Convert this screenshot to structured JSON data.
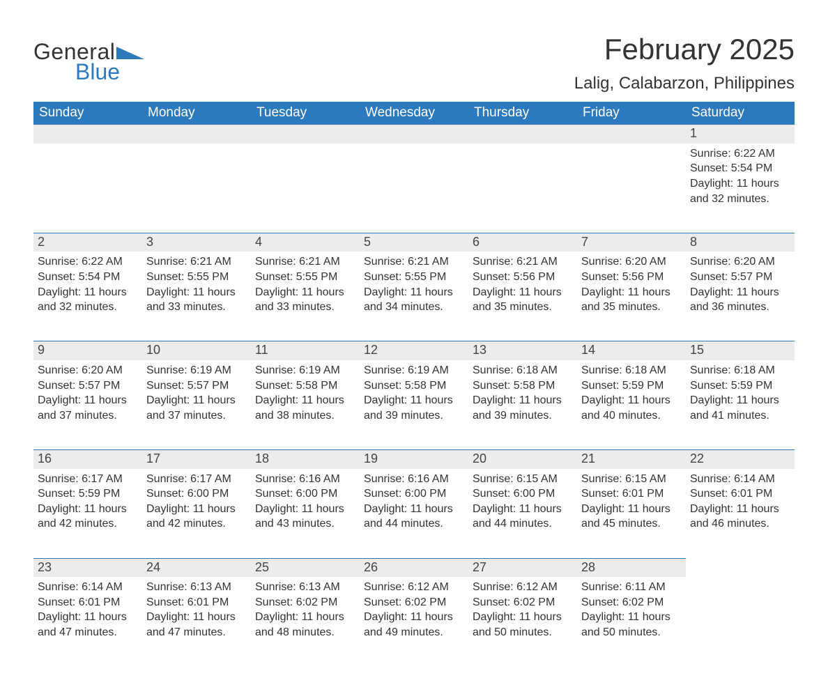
{
  "brand": {
    "text_general": "General",
    "text_blue": "Blue",
    "general_color": "#333333",
    "blue_color": "#2d79bd",
    "triangle_color": "#2d79bd"
  },
  "title": {
    "month_year": "February 2025",
    "location": "Lalig, Calabarzon, Philippines",
    "title_fontsize": 42,
    "location_fontsize": 24,
    "text_color": "#333333"
  },
  "calendar": {
    "header_bg": "#2d79bd",
    "header_text_color": "#ffffff",
    "daynum_bg": "#ececec",
    "daynum_border_top": "#2d79bd",
    "body_text_color": "#333333",
    "background_color": "#ffffff",
    "columns": [
      "Sunday",
      "Monday",
      "Tuesday",
      "Wednesday",
      "Thursday",
      "Friday",
      "Saturday"
    ],
    "weeks": [
      [
        null,
        null,
        null,
        null,
        null,
        null,
        {
          "day": "1",
          "sunrise": "Sunrise: 6:22 AM",
          "sunset": "Sunset: 5:54 PM",
          "daylight": "Daylight: 11 hours and 32 minutes."
        }
      ],
      [
        {
          "day": "2",
          "sunrise": "Sunrise: 6:22 AM",
          "sunset": "Sunset: 5:54 PM",
          "daylight": "Daylight: 11 hours and 32 minutes."
        },
        {
          "day": "3",
          "sunrise": "Sunrise: 6:21 AM",
          "sunset": "Sunset: 5:55 PM",
          "daylight": "Daylight: 11 hours and 33 minutes."
        },
        {
          "day": "4",
          "sunrise": "Sunrise: 6:21 AM",
          "sunset": "Sunset: 5:55 PM",
          "daylight": "Daylight: 11 hours and 33 minutes."
        },
        {
          "day": "5",
          "sunrise": "Sunrise: 6:21 AM",
          "sunset": "Sunset: 5:55 PM",
          "daylight": "Daylight: 11 hours and 34 minutes."
        },
        {
          "day": "6",
          "sunrise": "Sunrise: 6:21 AM",
          "sunset": "Sunset: 5:56 PM",
          "daylight": "Daylight: 11 hours and 35 minutes."
        },
        {
          "day": "7",
          "sunrise": "Sunrise: 6:20 AM",
          "sunset": "Sunset: 5:56 PM",
          "daylight": "Daylight: 11 hours and 35 minutes."
        },
        {
          "day": "8",
          "sunrise": "Sunrise: 6:20 AM",
          "sunset": "Sunset: 5:57 PM",
          "daylight": "Daylight: 11 hours and 36 minutes."
        }
      ],
      [
        {
          "day": "9",
          "sunrise": "Sunrise: 6:20 AM",
          "sunset": "Sunset: 5:57 PM",
          "daylight": "Daylight: 11 hours and 37 minutes."
        },
        {
          "day": "10",
          "sunrise": "Sunrise: 6:19 AM",
          "sunset": "Sunset: 5:57 PM",
          "daylight": "Daylight: 11 hours and 37 minutes."
        },
        {
          "day": "11",
          "sunrise": "Sunrise: 6:19 AM",
          "sunset": "Sunset: 5:58 PM",
          "daylight": "Daylight: 11 hours and 38 minutes."
        },
        {
          "day": "12",
          "sunrise": "Sunrise: 6:19 AM",
          "sunset": "Sunset: 5:58 PM",
          "daylight": "Daylight: 11 hours and 39 minutes."
        },
        {
          "day": "13",
          "sunrise": "Sunrise: 6:18 AM",
          "sunset": "Sunset: 5:58 PM",
          "daylight": "Daylight: 11 hours and 39 minutes."
        },
        {
          "day": "14",
          "sunrise": "Sunrise: 6:18 AM",
          "sunset": "Sunset: 5:59 PM",
          "daylight": "Daylight: 11 hours and 40 minutes."
        },
        {
          "day": "15",
          "sunrise": "Sunrise: 6:18 AM",
          "sunset": "Sunset: 5:59 PM",
          "daylight": "Daylight: 11 hours and 41 minutes."
        }
      ],
      [
        {
          "day": "16",
          "sunrise": "Sunrise: 6:17 AM",
          "sunset": "Sunset: 5:59 PM",
          "daylight": "Daylight: 11 hours and 42 minutes."
        },
        {
          "day": "17",
          "sunrise": "Sunrise: 6:17 AM",
          "sunset": "Sunset: 6:00 PM",
          "daylight": "Daylight: 11 hours and 42 minutes."
        },
        {
          "day": "18",
          "sunrise": "Sunrise: 6:16 AM",
          "sunset": "Sunset: 6:00 PM",
          "daylight": "Daylight: 11 hours and 43 minutes."
        },
        {
          "day": "19",
          "sunrise": "Sunrise: 6:16 AM",
          "sunset": "Sunset: 6:00 PM",
          "daylight": "Daylight: 11 hours and 44 minutes."
        },
        {
          "day": "20",
          "sunrise": "Sunrise: 6:15 AM",
          "sunset": "Sunset: 6:00 PM",
          "daylight": "Daylight: 11 hours and 44 minutes."
        },
        {
          "day": "21",
          "sunrise": "Sunrise: 6:15 AM",
          "sunset": "Sunset: 6:01 PM",
          "daylight": "Daylight: 11 hours and 45 minutes."
        },
        {
          "day": "22",
          "sunrise": "Sunrise: 6:14 AM",
          "sunset": "Sunset: 6:01 PM",
          "daylight": "Daylight: 11 hours and 46 minutes."
        }
      ],
      [
        {
          "day": "23",
          "sunrise": "Sunrise: 6:14 AM",
          "sunset": "Sunset: 6:01 PM",
          "daylight": "Daylight: 11 hours and 47 minutes."
        },
        {
          "day": "24",
          "sunrise": "Sunrise: 6:13 AM",
          "sunset": "Sunset: 6:01 PM",
          "daylight": "Daylight: 11 hours and 47 minutes."
        },
        {
          "day": "25",
          "sunrise": "Sunrise: 6:13 AM",
          "sunset": "Sunset: 6:02 PM",
          "daylight": "Daylight: 11 hours and 48 minutes."
        },
        {
          "day": "26",
          "sunrise": "Sunrise: 6:12 AM",
          "sunset": "Sunset: 6:02 PM",
          "daylight": "Daylight: 11 hours and 49 minutes."
        },
        {
          "day": "27",
          "sunrise": "Sunrise: 6:12 AM",
          "sunset": "Sunset: 6:02 PM",
          "daylight": "Daylight: 11 hours and 50 minutes."
        },
        {
          "day": "28",
          "sunrise": "Sunrise: 6:11 AM",
          "sunset": "Sunset: 6:02 PM",
          "daylight": "Daylight: 11 hours and 50 minutes."
        },
        null
      ]
    ]
  }
}
